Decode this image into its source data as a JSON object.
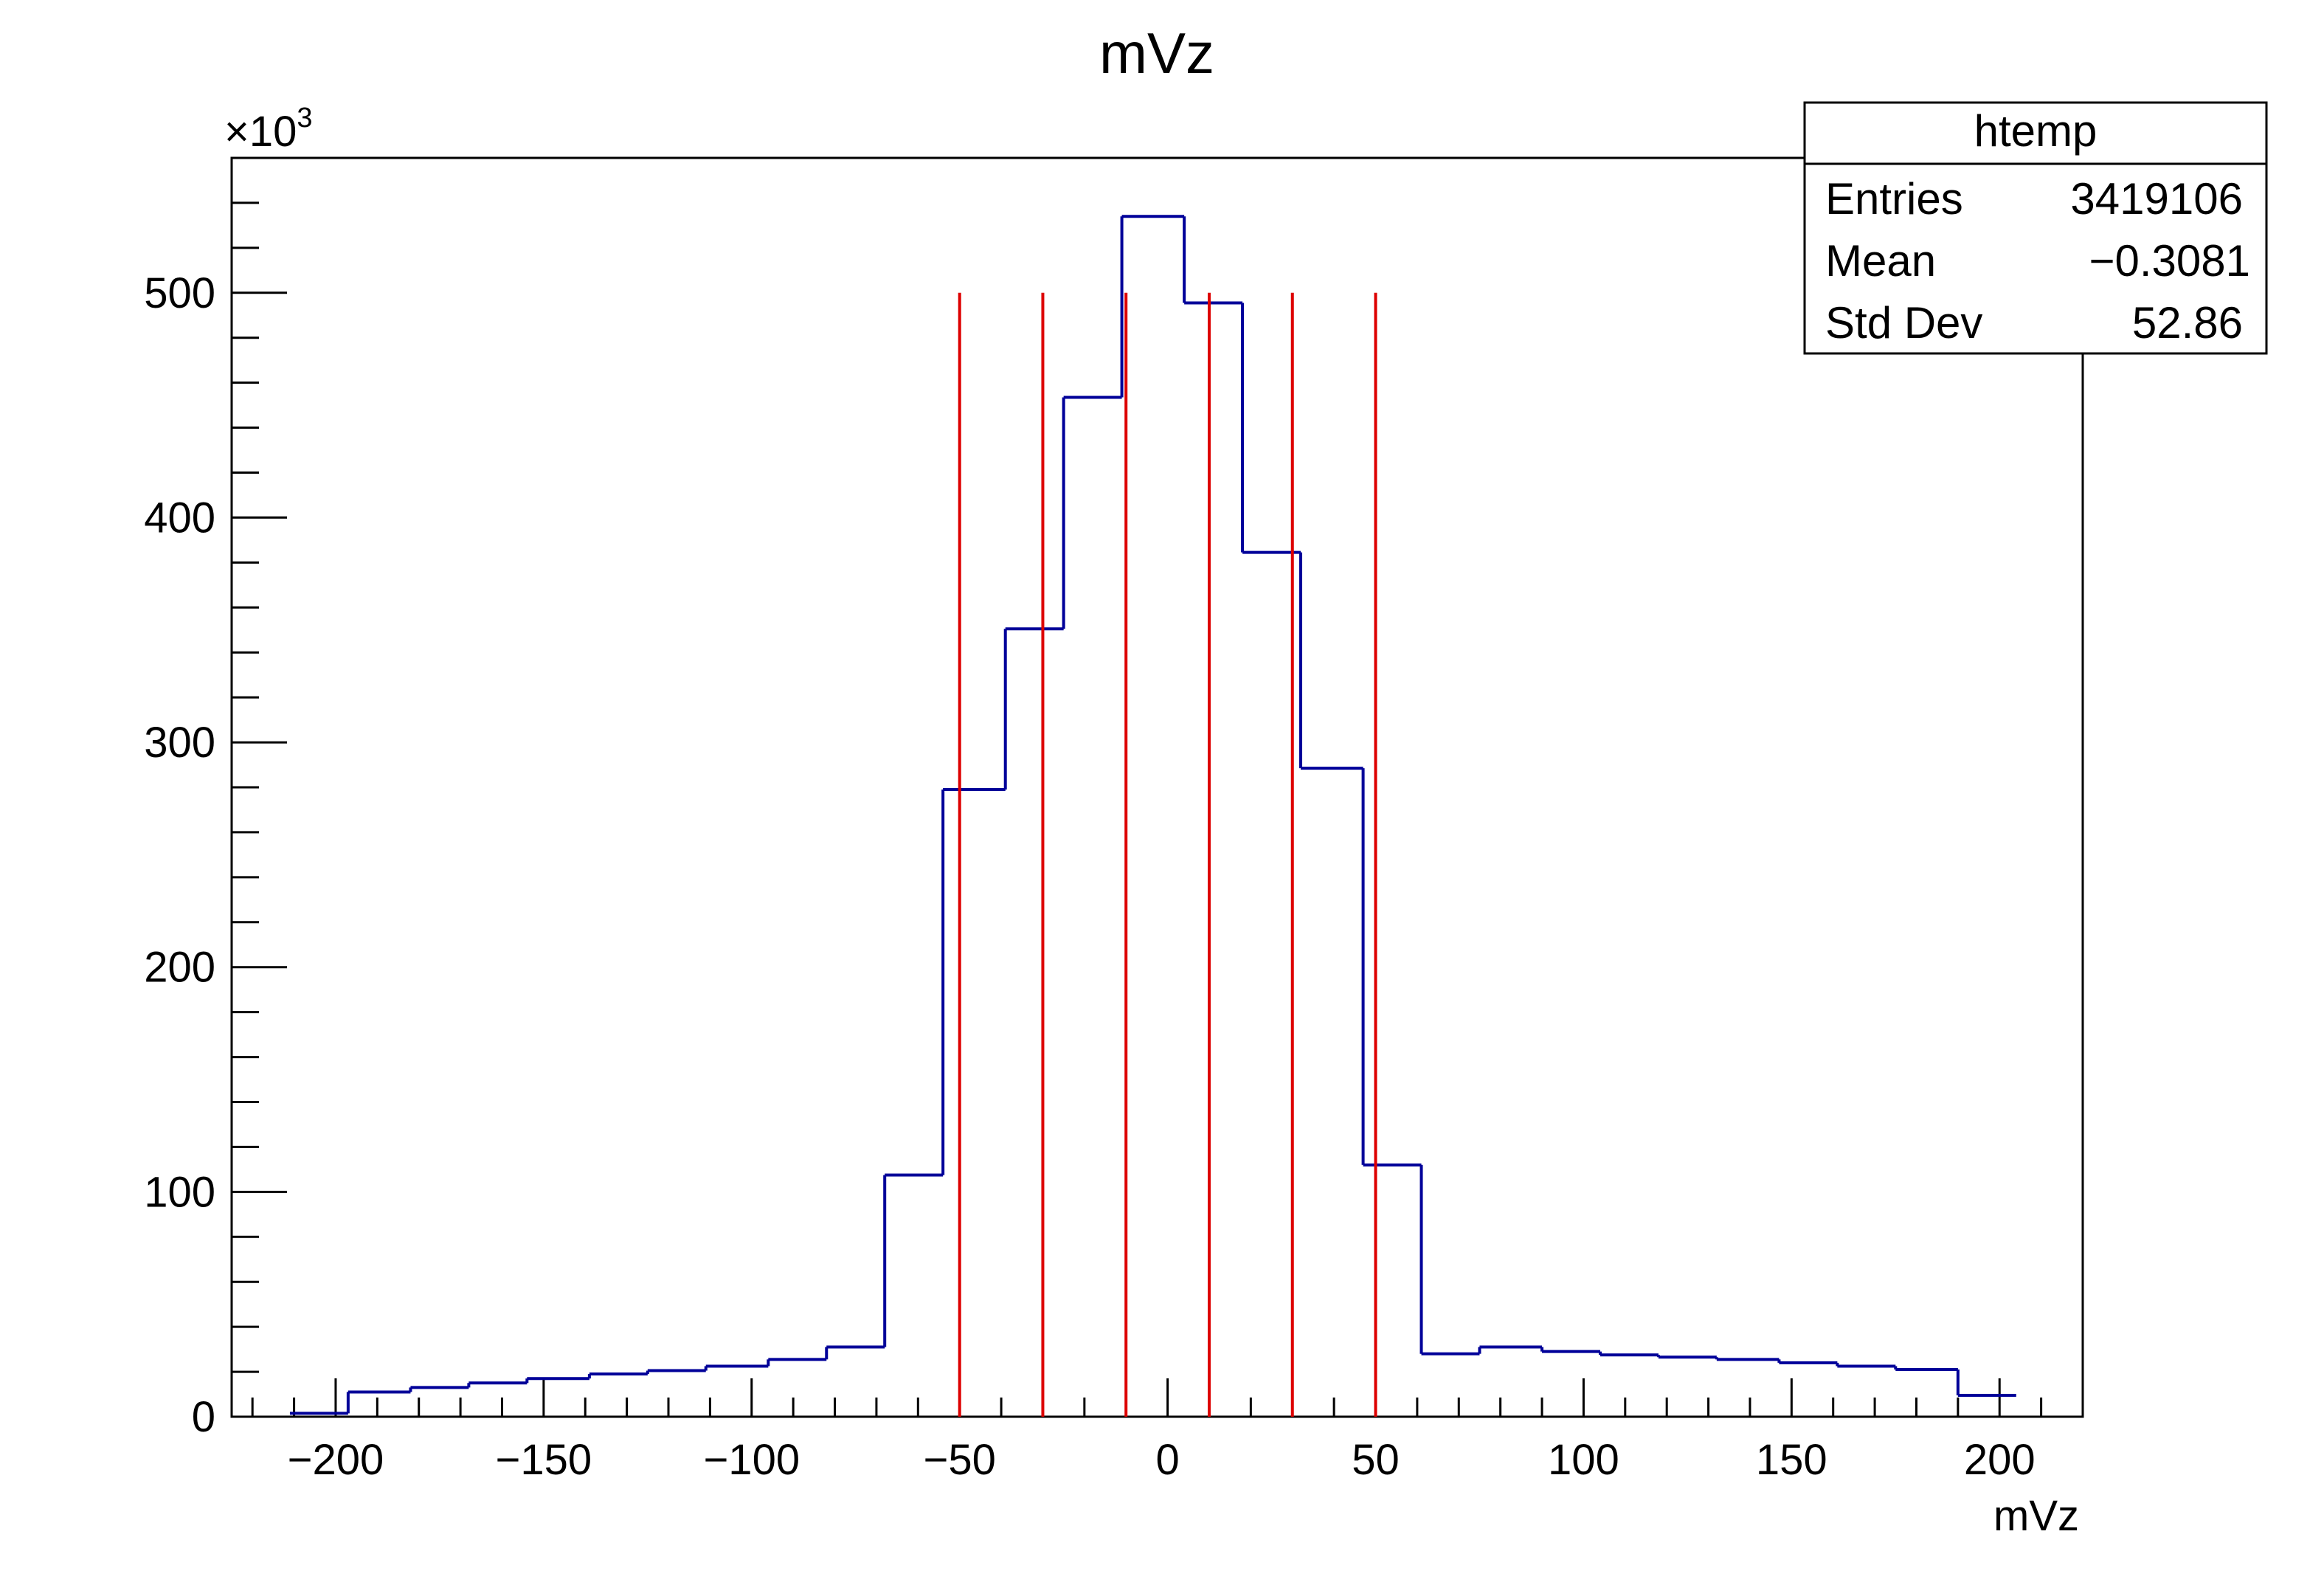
{
  "chart_data": {
    "type": "bar",
    "title": "mVz",
    "xlabel": "mVz",
    "ylabel": "",
    "y_multiplier_label": "×10",
    "y_multiplier_exponent": "3",
    "xlim": [
      -225,
      220
    ],
    "ylim": [
      0,
      560
    ],
    "x_ticks": [
      "−200",
      "−150",
      "−100",
      "−50",
      "0",
      "50",
      "100",
      "150",
      "200"
    ],
    "x_tick_values": [
      -200,
      -150,
      -100,
      -50,
      0,
      50,
      100,
      150,
      200
    ],
    "y_ticks": [
      "0",
      "100",
      "200",
      "300",
      "400",
      "500"
    ],
    "y_tick_values": [
      0,
      100,
      200,
      300,
      400,
      500
    ],
    "bin_edges": [
      -211,
      -197,
      -182,
      -168,
      -154,
      -139,
      -125,
      -111,
      -96,
      -82,
      -68,
      -54,
      -39,
      -25,
      -11,
      4,
      18,
      32,
      47,
      61,
      75,
      90,
      104,
      118,
      132,
      147,
      161,
      175,
      190,
      204
    ],
    "values": [
      1.5,
      11,
      13,
      15,
      17,
      19,
      20.5,
      22.5,
      25.5,
      31,
      107.5,
      279,
      350.5,
      453.5,
      534,
      495.5,
      384.5,
      288.5,
      112,
      28,
      31,
      29,
      27.5,
      26.5,
      25.5,
      24,
      22.5,
      21,
      9.5
    ],
    "series_color": "#000099",
    "cut_lines": {
      "x": [
        -50,
        -30,
        -10,
        10,
        30,
        50
      ],
      "y_top": 500,
      "color": "#dd0000"
    },
    "stats_box": {
      "title": "htemp",
      "rows": [
        {
          "label": "Entries",
          "value": "3419106"
        },
        {
          "label": "Mean",
          "value": "−0.3081"
        },
        {
          "label": "Std Dev",
          "value": "52.86"
        }
      ]
    },
    "grid": false,
    "legend_placement": "top-right"
  }
}
